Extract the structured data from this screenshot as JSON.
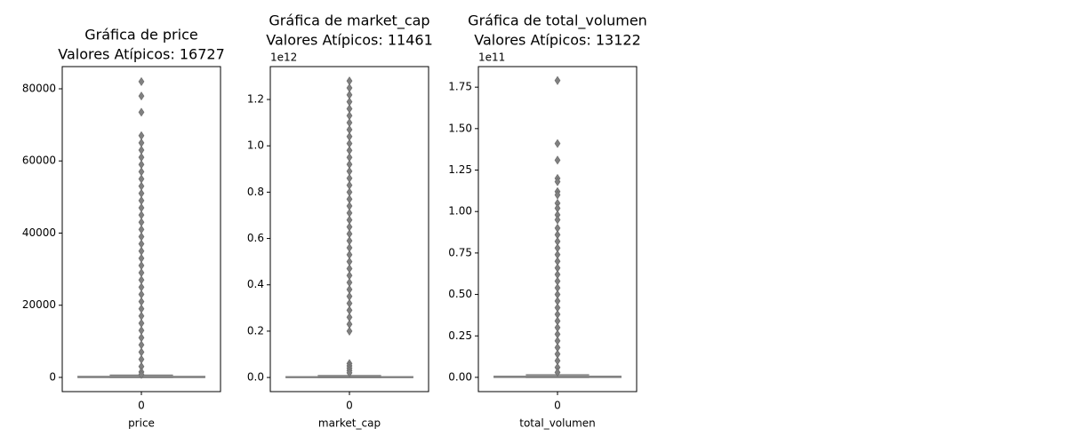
{
  "chart_data": [
    {
      "type": "box",
      "title": "Gráfica de price",
      "subtitle": "Valores Atípicos: 16727",
      "xlabel": "price",
      "categories": [
        "0"
      ],
      "color": "#808080",
      "ylim": [
        -3940,
        86150
      ],
      "yticks": [
        0,
        20000,
        40000,
        60000,
        80000
      ],
      "box": {
        "whislo": 0,
        "q1": 5,
        "median": 30,
        "q3": 250,
        "whishi": 600
      },
      "outliers": [
        82000,
        78000,
        73500,
        67000,
        65000,
        63000,
        61000,
        59000,
        57000,
        55000,
        53000,
        51000,
        49000,
        47000,
        45000,
        43000,
        41000,
        39000,
        37000,
        35000,
        33000,
        31000,
        29000,
        27000,
        25000,
        23000,
        21000,
        19000,
        17000,
        15000,
        13000,
        11000,
        9000,
        7000,
        5000,
        3000,
        1500,
        800
      ]
    },
    {
      "type": "box",
      "title": "Gráfica de market_cap",
      "subtitle": "Valores Atípicos: 11461",
      "xlabel": "market_cap",
      "offset_text": "1e12",
      "categories": [
        "0"
      ],
      "color": "#808080",
      "ylim": [
        -0.061,
        1.342
      ],
      "yticks": [
        {
          "value": 0,
          "label": "0.0"
        },
        0.2,
        0.4,
        0.6,
        0.8,
        {
          "value": 1,
          "label": "1.0"
        },
        1.2
      ],
      "box": {
        "whislo": 0,
        "q1": 0.0001,
        "median": 0.0005,
        "q3": 0.003,
        "whishi": 0.008
      },
      "outliers": [
        1.28,
        1.25,
        1.22,
        1.19,
        1.16,
        1.13,
        1.1,
        1.07,
        1.04,
        1.01,
        0.98,
        0.95,
        0.92,
        0.89,
        0.86,
        0.83,
        0.8,
        0.77,
        0.74,
        0.71,
        0.68,
        0.65,
        0.62,
        0.59,
        0.56,
        0.53,
        0.5,
        0.47,
        0.44,
        0.41,
        0.38,
        0.35,
        0.32,
        0.29,
        0.26,
        0.23,
        0.2,
        0.06,
        0.05,
        0.04,
        0.03,
        0.02
      ]
    },
    {
      "type": "box",
      "title": "Gráfica de total_volumen",
      "subtitle": "Valores Atípicos: 13122",
      "xlabel": "total_volumen",
      "offset_text": "1e11",
      "categories": [
        "0"
      ],
      "color": "#808080",
      "ylim": [
        -0.086,
        1.874
      ],
      "yticks": [
        {
          "value": 0,
          "label": "0.00"
        },
        0.25,
        {
          "value": 0.5,
          "label": "0.50"
        },
        0.75,
        {
          "value": 1,
          "label": "1.00"
        },
        1.25,
        {
          "value": 1.5,
          "label": "1.50"
        },
        1.75
      ],
      "box": {
        "whislo": 0,
        "q1": 0.0002,
        "median": 0.001,
        "q3": 0.006,
        "whishi": 0.015
      },
      "outliers": [
        1.79,
        1.41,
        1.31,
        1.2,
        1.18,
        1.12,
        1.1,
        1.05,
        1.02,
        0.98,
        0.95,
        0.9,
        0.86,
        0.82,
        0.78,
        0.74,
        0.7,
        0.66,
        0.62,
        0.58,
        0.54,
        0.5,
        0.46,
        0.42,
        0.38,
        0.34,
        0.3,
        0.26,
        0.22,
        0.18,
        0.14,
        0.1,
        0.06,
        0.03
      ]
    }
  ]
}
